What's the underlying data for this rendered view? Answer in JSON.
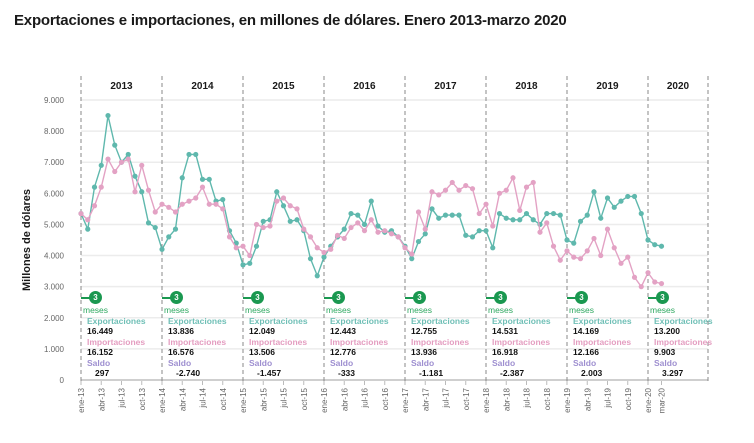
{
  "title": "Exportaciones e importaciones, en millones de dólares. Enero 2013-marzo 2020",
  "colors": {
    "exports": "#5fb8ad",
    "imports": "#e3a2c4",
    "saldo": "#9e8fd0",
    "badge": "#1a9850"
  },
  "stats": [
    {
      "year": "2013",
      "badge": "3",
      "meses": "meses",
      "exp_label": "Exportaciones",
      "exp": "16.449",
      "imp_label": "Importaciones",
      "imp": "16.152",
      "sal_label": "Saldo",
      "sal": "297"
    },
    {
      "year": "2014",
      "badge": "3",
      "meses": "meses",
      "exp_label": "Exportaciones",
      "exp": "13.836",
      "imp_label": "Importaciones",
      "imp": "16.576",
      "sal_label": "Saldo",
      "sal": "-2.740"
    },
    {
      "year": "2015",
      "badge": "3",
      "meses": "meses",
      "exp_label": "Exportaciones",
      "exp": "12.049",
      "imp_label": "Importaciones",
      "imp": "13.506",
      "sal_label": "Saldo",
      "sal": "-1.457"
    },
    {
      "year": "2016",
      "badge": "3",
      "meses": "meses",
      "exp_label": "Exportaciones",
      "exp": "12.443",
      "imp_label": "Importaciones",
      "imp": "12.776",
      "sal_label": "Saldo",
      "sal": "-333"
    },
    {
      "year": "2017",
      "badge": "3",
      "meses": "meses",
      "exp_label": "Exportaciones",
      "exp": "12.755",
      "imp_label": "Importaciones",
      "imp": "13.936",
      "sal_label": "Saldo",
      "sal": "-1.181"
    },
    {
      "year": "2018",
      "badge": "3",
      "meses": "meses",
      "exp_label": "Exportaciones",
      "exp": "14.531",
      "imp_label": "Importaciones",
      "imp": "16.918",
      "sal_label": "Saldo",
      "sal": "-2.387"
    },
    {
      "year": "2019",
      "badge": "3",
      "meses": "meses",
      "exp_label": "Exportaciones",
      "exp": "14.169",
      "imp_label": "Importaciones",
      "imp": "12.166",
      "sal_label": "Saldo",
      "sal": "2.003"
    },
    {
      "year": "2020",
      "badge": "3",
      "meses": "meses",
      "exp_label": "Exportaciones",
      "exp": "13.200",
      "imp_label": "Importaciones",
      "imp": "9.903",
      "sal_label": "Saldo",
      "sal": "3.297"
    }
  ],
  "chart_data": {
    "type": "line",
    "title": "Exportaciones e importaciones, en millones de dólares. Enero 2013-marzo 2020",
    "xlabel": "",
    "ylabel": "Millones de dólares",
    "ylim": [
      0,
      9000
    ],
    "yticks": [
      0,
      1000,
      2000,
      3000,
      4000,
      5000,
      6000,
      7000,
      8000,
      9000
    ],
    "ytick_labels": [
      "0",
      "1.000",
      "2.000",
      "3.000",
      "4.000",
      "5.000",
      "6.000",
      "7.000",
      "8.000",
      "9.000"
    ],
    "years": [
      "2013",
      "2014",
      "2015",
      "2016",
      "2017",
      "2018",
      "2019",
      "2020"
    ],
    "xtick_labels": [
      "ene-13",
      "abr-13",
      "jul-13",
      "oct-13",
      "ene-14",
      "abr-14",
      "jul-14",
      "oct-14",
      "ene-15",
      "abr-15",
      "jul-15",
      "oct-15",
      "ene-16",
      "abr-16",
      "jul-16",
      "oct-16",
      "ene-17",
      "abr-17",
      "jul-17",
      "oct-17",
      "ene-18",
      "abr-18",
      "jul-18",
      "oct-18",
      "ene-19",
      "abr-19",
      "jul-19",
      "oct-19",
      "ene-20",
      "mar-20"
    ],
    "grid": true,
    "legend": "none",
    "series": [
      {
        "name": "Exportaciones",
        "color": "#5fb8ad",
        "values": [
          5350,
          4850,
          6200,
          6900,
          8500,
          7550,
          7000,
          7250,
          6550,
          6050,
          5050,
          4900,
          4200,
          4600,
          4850,
          6500,
          7250,
          7250,
          6450,
          6450,
          5750,
          5800,
          4800,
          4400,
          3700,
          3750,
          4300,
          5100,
          5150,
          6050,
          5600,
          5100,
          5150,
          4800,
          3900,
          3350,
          3950,
          4300,
          4600,
          4850,
          5350,
          5300,
          5000,
          5750,
          4950,
          4750,
          4800,
          4600,
          4300,
          3900,
          4450,
          4700,
          5500,
          5200,
          5300,
          5300,
          5300,
          4650,
          4600,
          4800,
          4800,
          4250,
          5350,
          5200,
          5150,
          5150,
          5350,
          5150,
          5000,
          5350,
          5350,
          5300,
          4500,
          4400,
          5100,
          5300,
          6050,
          5200,
          5850,
          5550,
          5750,
          5900,
          5900,
          5350,
          4500,
          4350,
          4300
        ]
      },
      {
        "name": "Importaciones",
        "color": "#e3a2c4",
        "values": [
          5350,
          5150,
          5600,
          6200,
          7100,
          6700,
          7000,
          7100,
          6050,
          6900,
          6100,
          5400,
          5650,
          5550,
          5400,
          5650,
          5750,
          5850,
          6200,
          5650,
          5650,
          5500,
          4600,
          4250,
          4300,
          4000,
          5000,
          4900,
          4950,
          5750,
          5850,
          5600,
          5500,
          4850,
          4600,
          4250,
          4100,
          4200,
          4650,
          4550,
          4900,
          5050,
          4800,
          5150,
          4750,
          4800,
          4700,
          4600,
          4250,
          4050,
          5400,
          4850,
          6050,
          5950,
          6100,
          6350,
          6100,
          6250,
          6150,
          5350,
          5650,
          4950,
          6000,
          6100,
          6500,
          5450,
          6200,
          6350,
          4750,
          5050,
          4300,
          3850,
          4150,
          3950,
          3900,
          4150,
          4550,
          4000,
          4850,
          4250,
          3750,
          3950,
          3300,
          3000,
          3450,
          3150,
          3100
        ]
      }
    ]
  }
}
